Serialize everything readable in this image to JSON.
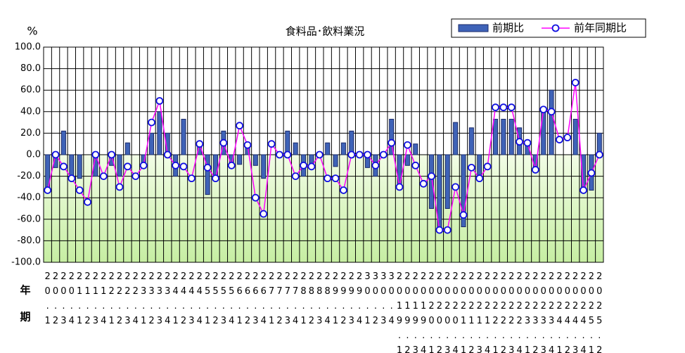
{
  "chart_data": {
    "type": "bar_line",
    "title": "食料品･飲料業況",
    "y_unit": "%",
    "x_axis_labels": [
      "年",
      "期"
    ],
    "categories": [
      "20.1",
      "20.2",
      "20.3",
      "20.4",
      "21.1",
      "21.2",
      "21.3",
      "21.4",
      "22.1",
      "22.2",
      "22.3",
      "22.4",
      "23.1",
      "23.2",
      "23.3",
      "23.4",
      "24.1",
      "24.2",
      "24.3",
      "24.4",
      "25.1",
      "25.2",
      "25.3",
      "25.4",
      "26.1",
      "26.2",
      "26.3",
      "26.4",
      "27.1",
      "27.2",
      "27.3",
      "27.4",
      "28.1",
      "28.2",
      "28.3",
      "28.4",
      "29.1",
      "29.2",
      "29.3",
      "29.4",
      "30.1",
      "30.2",
      "30.3",
      "30.4",
      "2019.1",
      "2019.2",
      "2019.3",
      "2019.4",
      "2020.1",
      "2020.2",
      "2020.3",
      "2020.4",
      "2021.1",
      "2021.2",
      "2021.3",
      "2021.4",
      "2022.1",
      "2022.2",
      "2022.3",
      "2022.4",
      "2023.1",
      "2023.2",
      "2023.3",
      "2023.4",
      "2024.1",
      "2024.2",
      "2024.3",
      "2024.4",
      "2025.1",
      "2025.2"
    ],
    "series": [
      {
        "name": "前期比",
        "kind": "bar",
        "color": "#3f63b8",
        "values": [
          -33,
          -12,
          22,
          -22,
          -22,
          0,
          -20,
          0,
          -10,
          -20,
          11,
          0,
          -10,
          20,
          40,
          20,
          -20,
          33,
          0,
          10,
          -37,
          -20,
          22,
          -10,
          -9,
          10,
          -10,
          -22,
          0,
          0,
          22,
          11,
          -20,
          -10,
          0,
          11,
          -11,
          11,
          22,
          0,
          -12,
          -20,
          0,
          33,
          -30,
          -10,
          10,
          0,
          -50,
          -70,
          -50,
          30,
          -67,
          25,
          -20,
          0,
          33,
          33,
          33,
          25,
          11,
          -12,
          40,
          60,
          0,
          0,
          33,
          -30,
          -33,
          20
        ]
      },
      {
        "name": "前年同期比",
        "kind": "line",
        "color": "#ff00ff",
        "values": [
          -33,
          0,
          -11,
          -22,
          -33,
          -44,
          0,
          -20,
          0,
          -30,
          -11,
          -20,
          -10,
          30,
          50,
          0,
          -10,
          -11,
          -22,
          10,
          -12,
          -22,
          11,
          -10,
          27,
          9,
          -40,
          -55,
          10,
          0,
          0,
          -20,
          -10,
          -11,
          0,
          -22,
          -22,
          -33,
          0,
          0,
          0,
          -10,
          0,
          11,
          -30,
          9,
          -10,
          -27,
          -20,
          -70,
          -70,
          -30,
          -56,
          -12,
          -22,
          -11,
          44,
          44,
          44,
          12,
          11,
          -14,
          42,
          40,
          14,
          16,
          67,
          -33,
          -17,
          0
        ]
      }
    ],
    "ylim": [
      -100,
      100
    ],
    "yticks": [
      {
        "value": -100,
        "label": "-100.0"
      },
      {
        "value": -80,
        "label": "-80.0"
      },
      {
        "value": -60,
        "label": "-60.0"
      },
      {
        "value": -40,
        "label": "-40.0"
      },
      {
        "value": -20,
        "label": "-20.0"
      },
      {
        "value": 0,
        "label": "0.0"
      },
      {
        "value": 20,
        "label": "20.0"
      },
      {
        "value": 40,
        "label": "40.0"
      },
      {
        "value": 60,
        "label": "60.0"
      },
      {
        "value": 80,
        "label": "80.0"
      },
      {
        "value": 100,
        "label": "100.0"
      }
    ],
    "grid": true,
    "legend": "top-right"
  }
}
